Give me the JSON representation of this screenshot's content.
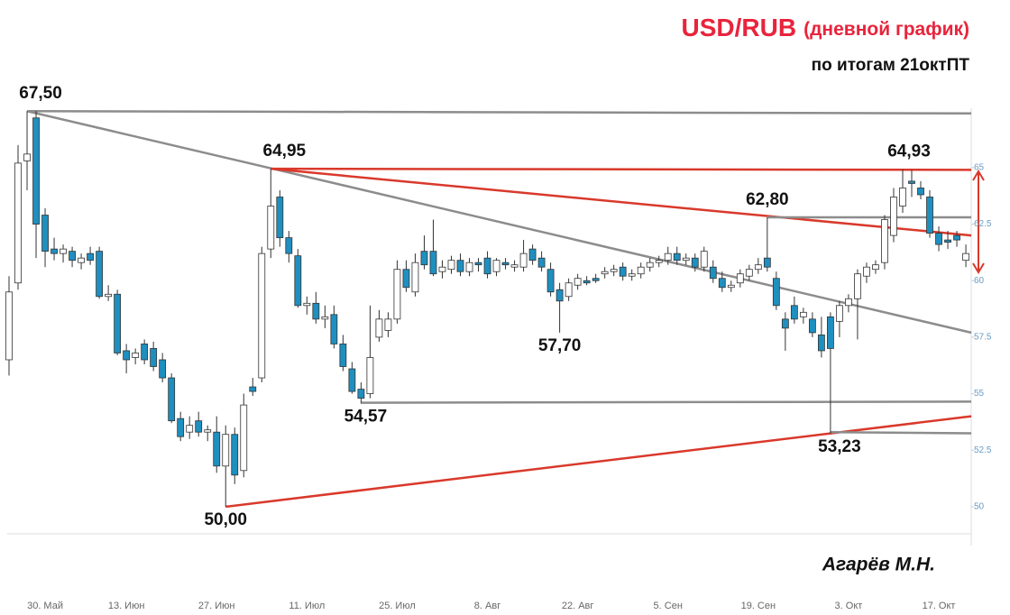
{
  "chart_data": {
    "type": "candlestick",
    "title": "USD/RUB",
    "title_note": "(дневной график)",
    "subtitle": "по итогам 21октПТ",
    "author": "Агарёв М.Н.",
    "up_color": "#ffffff",
    "down_color": "#1f8fc0",
    "categories": [
      null,
      null,
      null,
      null,
      "30. Май",
      null,
      null,
      null,
      null,
      null,
      null,
      null,
      null,
      "13. Июн",
      null,
      null,
      null,
      null,
      null,
      null,
      null,
      null,
      null,
      "27. Июн",
      null,
      null,
      null,
      null,
      null,
      null,
      null,
      null,
      null,
      "11. Июл",
      null,
      null,
      null,
      null,
      null,
      null,
      null,
      null,
      null,
      "25. Июл",
      null,
      null,
      null,
      null,
      null,
      null,
      null,
      null,
      null,
      "8. Авг",
      null,
      null,
      null,
      null,
      null,
      null,
      null,
      null,
      null,
      "22. Авг",
      null,
      null,
      null,
      null,
      null,
      null,
      null,
      null,
      null,
      "5. Сен",
      null,
      null,
      null,
      null,
      null,
      null,
      null,
      null,
      null,
      "19. Сен",
      null,
      null,
      null,
      null,
      null,
      null,
      null,
      null,
      null,
      "3. Окт",
      null,
      null,
      null,
      null,
      null,
      null,
      null,
      null,
      null,
      "17. Окт",
      null,
      null,
      null
    ],
    "ohlc": [
      [
        56.5,
        60.2,
        55.8,
        59.5
      ],
      [
        59.9,
        66.0,
        59.6,
        65.2
      ],
      [
        65.3,
        67.5,
        64.0,
        65.6
      ],
      [
        67.2,
        67.5,
        61.0,
        62.5
      ],
      [
        62.9,
        63.2,
        60.6,
        61.3
      ],
      [
        61.4,
        61.9,
        60.9,
        61.2
      ],
      [
        61.2,
        61.6,
        60.8,
        61.4
      ],
      [
        61.3,
        61.5,
        60.6,
        60.9
      ],
      [
        60.8,
        61.2,
        60.5,
        61.0
      ],
      [
        61.2,
        61.5,
        60.7,
        60.9
      ],
      [
        61.3,
        61.5,
        59.2,
        59.3
      ],
      [
        59.3,
        59.8,
        59.1,
        59.4
      ],
      [
        59.4,
        59.6,
        56.7,
        56.8
      ],
      [
        56.9,
        57.2,
        55.9,
        56.5
      ],
      [
        56.6,
        57.0,
        56.3,
        56.8
      ],
      [
        57.2,
        57.4,
        56.3,
        56.5
      ],
      [
        57.0,
        57.3,
        56.0,
        56.2
      ],
      [
        56.5,
        56.8,
        55.5,
        55.7
      ],
      [
        55.7,
        55.9,
        53.7,
        53.8
      ],
      [
        53.9,
        54.2,
        52.9,
        53.1
      ],
      [
        53.3,
        54.0,
        53.0,
        53.6
      ],
      [
        53.8,
        54.2,
        53.1,
        53.3
      ],
      [
        53.3,
        53.6,
        52.9,
        53.4
      ],
      [
        53.3,
        54.0,
        51.5,
        51.8
      ],
      [
        51.8,
        53.6,
        50.0,
        53.2
      ],
      [
        53.2,
        53.5,
        51.0,
        51.4
      ],
      [
        51.6,
        55.0,
        51.3,
        54.5
      ],
      [
        55.3,
        55.7,
        54.9,
        55.1
      ],
      [
        55.7,
        61.5,
        55.5,
        61.2
      ],
      [
        61.4,
        64.95,
        61.0,
        63.3
      ],
      [
        63.7,
        64.0,
        61.5,
        61.9
      ],
      [
        61.9,
        62.2,
        60.8,
        61.2
      ],
      [
        61.1,
        61.4,
        58.8,
        58.9
      ],
      [
        58.9,
        59.3,
        58.5,
        59.0
      ],
      [
        59.0,
        59.5,
        58.1,
        58.3
      ],
      [
        58.3,
        58.9,
        57.9,
        58.4
      ],
      [
        58.5,
        58.9,
        57.0,
        57.2
      ],
      [
        57.2,
        57.6,
        56.0,
        56.2
      ],
      [
        56.1,
        56.4,
        55.0,
        55.1
      ],
      [
        55.2,
        55.5,
        54.57,
        54.8
      ],
      [
        55.0,
        58.9,
        54.8,
        56.6
      ],
      [
        57.5,
        58.7,
        57.3,
        58.3
      ],
      [
        57.8,
        58.6,
        57.5,
        58.3
      ],
      [
        58.3,
        60.9,
        58.1,
        60.5
      ],
      [
        60.5,
        60.9,
        59.5,
        59.7
      ],
      [
        59.5,
        61.2,
        59.3,
        60.8
      ],
      [
        61.3,
        62.0,
        60.5,
        60.7
      ],
      [
        61.3,
        62.7,
        60.2,
        60.3
      ],
      [
        60.4,
        60.9,
        60.1,
        60.6
      ],
      [
        60.5,
        61.1,
        60.3,
        60.9
      ],
      [
        60.9,
        61.2,
        60.2,
        60.4
      ],
      [
        60.4,
        61.0,
        60.2,
        60.8
      ],
      [
        60.8,
        61.0,
        60.4,
        60.7
      ],
      [
        61.0,
        61.3,
        60.1,
        60.3
      ],
      [
        60.4,
        61.0,
        60.2,
        60.9
      ],
      [
        60.8,
        61.0,
        60.5,
        60.7
      ],
      [
        60.6,
        60.9,
        60.4,
        60.7
      ],
      [
        60.6,
        61.8,
        60.4,
        61.2
      ],
      [
        61.4,
        61.6,
        60.7,
        60.9
      ],
      [
        61.0,
        61.3,
        60.4,
        60.6
      ],
      [
        60.5,
        60.8,
        59.3,
        59.5
      ],
      [
        59.6,
        59.9,
        57.7,
        59.1
      ],
      [
        59.3,
        60.1,
        59.1,
        59.9
      ],
      [
        59.8,
        60.3,
        59.6,
        60.1
      ],
      [
        60.0,
        60.2,
        59.8,
        59.9
      ],
      [
        60.1,
        60.3,
        59.9,
        60.0
      ],
      [
        60.3,
        60.6,
        60.1,
        60.4
      ],
      [
        60.4,
        60.7,
        60.2,
        60.5
      ],
      [
        60.6,
        60.8,
        60.0,
        60.2
      ],
      [
        60.2,
        60.5,
        60.0,
        60.3
      ],
      [
        60.3,
        60.8,
        60.1,
        60.6
      ],
      [
        60.6,
        61.0,
        60.4,
        60.8
      ],
      [
        60.8,
        61.1,
        60.6,
        60.9
      ],
      [
        60.9,
        61.5,
        60.7,
        61.2
      ],
      [
        61.2,
        61.5,
        60.7,
        60.9
      ],
      [
        60.9,
        61.2,
        60.7,
        61.0
      ],
      [
        61.0,
        61.2,
        60.4,
        60.6
      ],
      [
        60.6,
        61.5,
        60.4,
        61.3
      ],
      [
        60.6,
        60.9,
        59.9,
        60.1
      ],
      [
        60.1,
        60.4,
        59.5,
        59.7
      ],
      [
        59.7,
        60.0,
        59.5,
        59.8
      ],
      [
        59.9,
        60.5,
        59.7,
        60.3
      ],
      [
        60.2,
        60.7,
        60.0,
        60.5
      ],
      [
        60.5,
        61.0,
        60.3,
        60.7
      ],
      [
        61.0,
        62.8,
        60.4,
        60.6
      ],
      [
        60.1,
        60.4,
        58.7,
        58.9
      ],
      [
        58.3,
        58.6,
        56.9,
        57.9
      ],
      [
        58.9,
        59.3,
        58.1,
        58.3
      ],
      [
        58.4,
        58.8,
        58.1,
        58.6
      ],
      [
        58.3,
        58.6,
        57.5,
        57.7
      ],
      [
        57.6,
        58.4,
        56.6,
        56.9
      ],
      [
        58.4,
        58.6,
        53.23,
        57.0
      ],
      [
        58.2,
        59.1,
        57.5,
        58.9
      ],
      [
        58.9,
        59.4,
        58.6,
        59.2
      ],
      [
        59.2,
        60.5,
        57.4,
        60.3
      ],
      [
        60.2,
        60.8,
        59.9,
        60.6
      ],
      [
        60.5,
        60.9,
        60.3,
        60.7
      ],
      [
        60.8,
        62.9,
        60.5,
        62.7
      ],
      [
        62.0,
        64.1,
        61.7,
        63.7
      ],
      [
        63.3,
        64.93,
        63.0,
        64.1
      ],
      [
        64.4,
        64.9,
        63.7,
        64.3
      ],
      [
        64.1,
        64.4,
        63.6,
        63.8
      ],
      [
        63.7,
        64.0,
        61.9,
        62.1
      ],
      [
        62.1,
        62.4,
        61.3,
        61.6
      ],
      [
        61.8,
        62.2,
        61.4,
        61.7
      ],
      [
        62.0,
        62.2,
        61.5,
        61.8
      ],
      [
        60.9,
        61.6,
        60.6,
        61.2
      ]
    ],
    "ylim": [
      48.8,
      72.2
    ],
    "yticks": [
      50,
      52.5,
      55,
      57.5,
      60,
      62.5,
      65
    ],
    "trendlines": [
      {
        "color": "#8c8c8c",
        "from": [
          2,
          67.5
        ],
        "to": [
          106.6,
          67.4
        ]
      },
      {
        "color": "#8c8c8c",
        "from": [
          2,
          67.5
        ],
        "to": [
          106.6,
          57.7
        ]
      },
      {
        "color": "#d9392b",
        "from": [
          29,
          64.95
        ],
        "to": [
          106.6,
          64.9
        ]
      },
      {
        "color": "#d9392b",
        "from": [
          29,
          64.95
        ],
        "to": [
          106.6,
          62.0
        ]
      },
      {
        "color": "#8c8c8c",
        "from": [
          84,
          62.8
        ],
        "to": [
          106.6,
          62.8
        ]
      },
      {
        "color": "#8c8c8c",
        "from": [
          39,
          54.6
        ],
        "to": [
          106.6,
          54.65
        ]
      },
      {
        "color": "#d9392b",
        "from": [
          24,
          50.0
        ],
        "to": [
          106.6,
          54.0
        ]
      },
      {
        "color": "#8c8c8c",
        "from": [
          91,
          53.3
        ],
        "to": [
          106.6,
          53.25
        ]
      }
    ],
    "annotations": [
      {
        "label": "67,50",
        "value": 67.5,
        "index": 3.5,
        "pos": "above"
      },
      {
        "label": "64,95",
        "value": 64.95,
        "index": 30.5,
        "pos": "above"
      },
      {
        "label": "62,80",
        "value": 62.8,
        "index": 84,
        "pos": "above"
      },
      {
        "label": "57,70",
        "value": 57.7,
        "index": 61,
        "pos": "below"
      },
      {
        "label": "54,57",
        "value": 54.57,
        "index": 39.5,
        "pos": "below"
      },
      {
        "label": "50,00",
        "value": 50.0,
        "index": 24,
        "pos": "below"
      },
      {
        "label": "53,23",
        "value": 53.23,
        "index": 92,
        "pos": "below"
      },
      {
        "label": "64,93",
        "value": 64.93,
        "index": 99.7,
        "pos": "above"
      }
    ]
  }
}
